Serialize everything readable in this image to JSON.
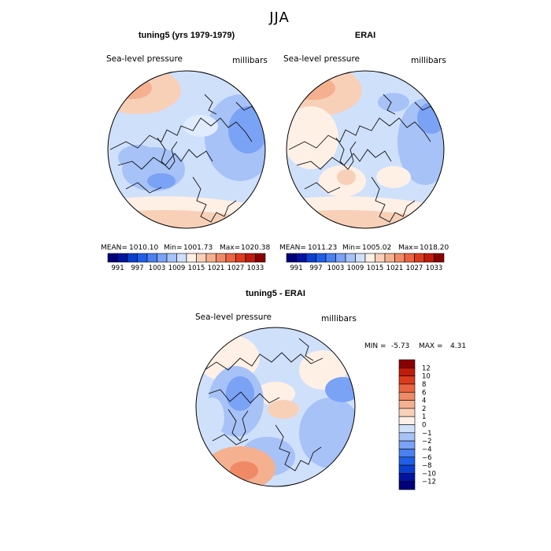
{
  "season_title": "JJA",
  "colors": {
    "map1": [
      "#00007a",
      "#0014a0",
      "#0a3fd0",
      "#1f5fe8",
      "#4a80f0",
      "#7aa2f5",
      "#a6c2f7",
      "#cfe0fb",
      "#fff0e6",
      "#f8d0b8",
      "#f5b090",
      "#f08a66",
      "#ea6442",
      "#dc3c1e",
      "#c01c0c",
      "#8a0000"
    ],
    "diff": [
      "#00007a",
      "#0014a0",
      "#0a3fd0",
      "#1f5fe8",
      "#4a80f0",
      "#7aa2f5",
      "#a6c2f7",
      "#cfe0fb",
      "#fff0e6",
      "#f8d0b8",
      "#f5b090",
      "#f08a66",
      "#ea6442",
      "#dc3c1e",
      "#c01c0c",
      "#8a0000"
    ]
  },
  "panels": [
    {
      "title": "tuning5 (yrs 1979-1979)",
      "var_label": "Sea-level pressure",
      "units": "millibars",
      "stats": {
        "mean_label": "MEAN=",
        "mean": "1010.10",
        "min_label": "Min=",
        "min": "1001.73",
        "max_label": "Max=",
        "max": "1020.38"
      },
      "colorbar_labels": [
        "991",
        "997",
        "1003",
        "1009",
        "1015",
        "1021",
        "1027",
        "1033"
      ]
    },
    {
      "title": "ERAI",
      "var_label": "Sea-level pressure",
      "units": "millibars",
      "stats": {
        "mean_label": "MEAN=",
        "mean": "1011.23",
        "min_label": "Min=",
        "min": "1005.02",
        "max_label": "Max=",
        "max": "1018.20"
      },
      "colorbar_labels": [
        "991",
        "997",
        "1003",
        "1009",
        "1015",
        "1021",
        "1027",
        "1033"
      ]
    }
  ],
  "diff_panel": {
    "title": "tuning5 - ERAI",
    "var_label": "Sea-level pressure",
    "units": "millibars",
    "min_label": "MIN =",
    "min": "-5.73",
    "max_label": "MAX =",
    "max": "4.31",
    "colorbar_labels": [
      "12",
      "10",
      "8",
      "6",
      "4",
      "2",
      "1",
      "0",
      "−1",
      "−2",
      "−4",
      "−6",
      "−8",
      "−10",
      "−12"
    ]
  }
}
